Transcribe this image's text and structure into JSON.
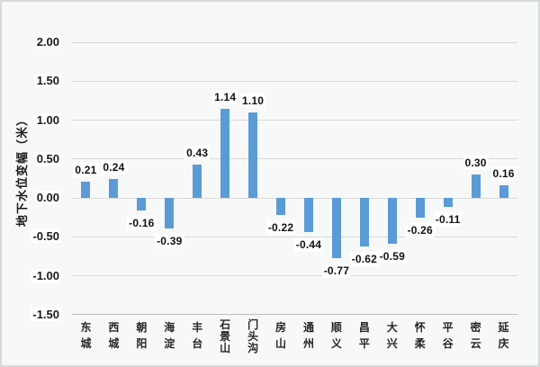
{
  "chart_data": {
    "type": "bar",
    "title": "",
    "xlabel": "",
    "ylabel": "地下水位变幅（米）",
    "categories": [
      "东城",
      "西城",
      "朝阳",
      "海淀",
      "丰台",
      "石景山",
      "门头沟",
      "房山",
      "通州",
      "顺义",
      "昌平",
      "大兴",
      "怀柔",
      "平谷",
      "密云",
      "延庆"
    ],
    "values": [
      0.21,
      0.24,
      -0.16,
      -0.39,
      0.43,
      1.14,
      1.1,
      -0.22,
      -0.44,
      -0.77,
      -0.62,
      -0.59,
      -0.26,
      -0.11,
      0.3,
      0.16
    ],
    "value_labels": [
      "0.21",
      "0.24",
      "-0.16",
      "-0.39",
      "0.43",
      "1.14",
      "1.10",
      "-0.22",
      "-0.44",
      "-0.77",
      "-0.62",
      "-0.59",
      "-0.26",
      "-0.11",
      "0.30",
      "0.16"
    ],
    "y_tick_labels": [
      "2.00",
      "1.50",
      "1.00",
      "0.50",
      "0.00",
      "-0.50",
      "-1.00",
      "-1.50"
    ],
    "y_tick_values": [
      2.0,
      1.5,
      1.0,
      0.5,
      0.0,
      -0.5,
      -1.0,
      -1.5
    ],
    "ylim": [
      -1.5,
      2.0
    ],
    "grid": "on",
    "legend": "none",
    "colors": {
      "bar": "#5b9bd5",
      "gridline": "#d9d9d9",
      "axis_line": "#bfbfbf",
      "background": "#f7f8f8",
      "border": "#d7dada",
      "text": "#1a1a1a"
    }
  }
}
